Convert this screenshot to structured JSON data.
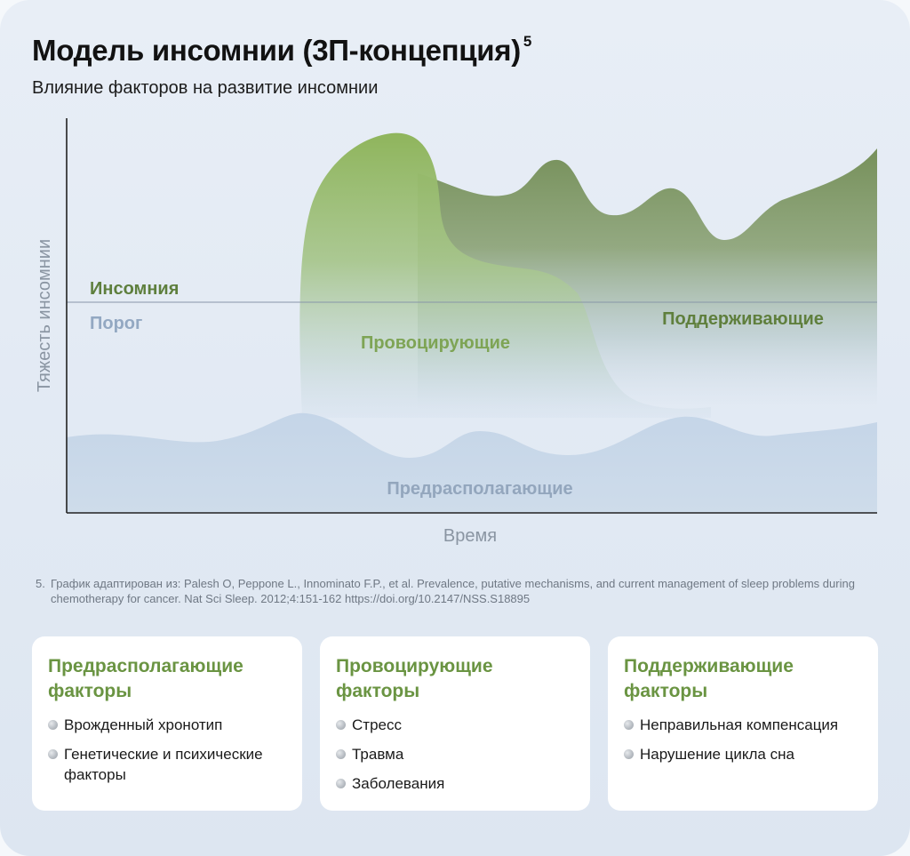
{
  "header": {
    "title": "Модель инсомнии (3П-концепция)",
    "title_ref": "5",
    "subtitle": "Влияние факторов на развитие инсомнии"
  },
  "chart_data": {
    "type": "area",
    "xlabel": "Время",
    "ylabel": "Тяжесть инсомнии",
    "threshold": {
      "label_above": "Инсомния",
      "label_below": "Порог"
    },
    "series": [
      {
        "name": "Предрасполагающие",
        "color": "#c6d6e8"
      },
      {
        "name": "Провоцирующие",
        "color": "#8fb85f"
      },
      {
        "name": "Поддерживающие",
        "color": "#7a9360"
      }
    ],
    "colors": {
      "axis": "#222222",
      "threshold_line": "#8796a8",
      "threshold_above_label": "#5e7f3d",
      "threshold_below_label": "#93a8c2",
      "axis_label": "#8a95a2",
      "predisposing_label": "#93a6bd",
      "precipitating_label": "#7ea455",
      "perpetuating_label": "#5f7f3d"
    }
  },
  "footnote": {
    "number": "5.",
    "text": "График адаптирован из: Palesh O, Peppone L., Innominato F.P.,  et al. Prevalence, putative mechanisms, and current management of sleep problems during chemotherapy for cancer. Nat Sci Sleep. 2012;4:151-162 https://doi.org/10.2147/NSS.S18895"
  },
  "factor_cards": [
    {
      "title": "Предрасполагающие факторы",
      "items": [
        "Врожденный хронотип",
        "Генетические и психические факторы"
      ]
    },
    {
      "title": "Провоцирующие факторы",
      "items": [
        "Стресс",
        "Травма",
        "Заболевания"
      ]
    },
    {
      "title": "Поддерживающие факторы",
      "items": [
        "Неправильная компенсация",
        "Нарушение цикла сна"
      ]
    }
  ]
}
